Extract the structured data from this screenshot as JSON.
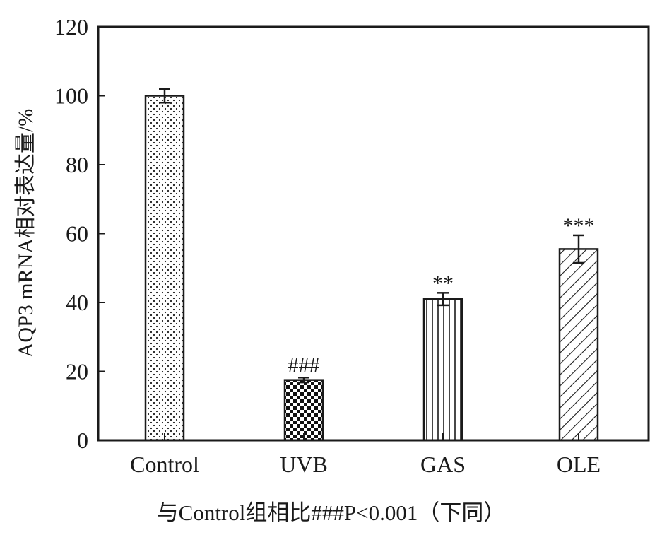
{
  "chart_data": {
    "type": "bar",
    "categories": [
      "Control",
      "UVB",
      "GAS",
      "OLE"
    ],
    "values": [
      100,
      17.5,
      41,
      55.5
    ],
    "errors": [
      2,
      0.7,
      1.8,
      4
    ],
    "annotations": [
      "",
      "###",
      "**",
      "***"
    ],
    "patterns": [
      "dots",
      "checker",
      "vertical-lines",
      "diagonal-lines"
    ],
    "ylabel": "AQP3 mRNA相对表达量/%",
    "xlabel": "",
    "ylim": [
      0,
      120
    ],
    "yticks": [
      0,
      20,
      40,
      60,
      80,
      100,
      120
    ],
    "grid": false,
    "legend": "none",
    "caption": "与Control组相比###P<0.001（下同）"
  }
}
